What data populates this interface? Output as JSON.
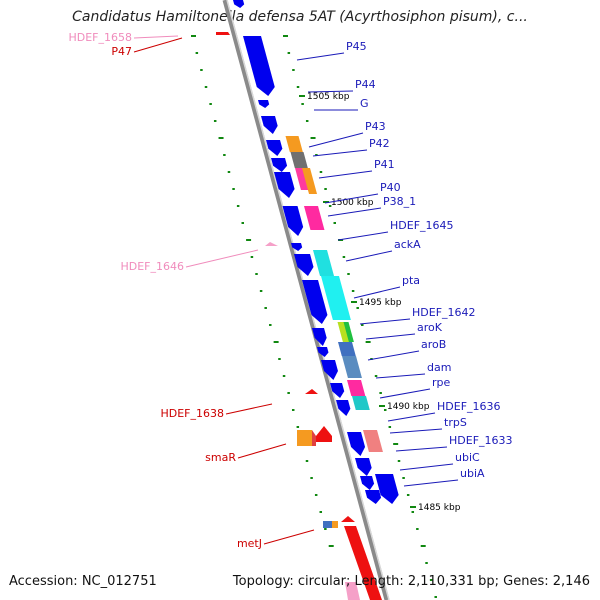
{
  "title": "Candidatus Hamiltonella defensa 5AT (Acyrthosiphon pisum), c...",
  "footer": {
    "accession": "Accession: NC_012751",
    "summary": "Topology: circular; Length: 2,110,331 bp; Genes: 2,146"
  },
  "colors": {
    "backbone": "#8a8a8a",
    "forward_gene": "#0000ee",
    "label_blue": "#1a1ab8",
    "label_red": "#cc0000",
    "label_pink": "#f08cbc",
    "tick_green": "#118811"
  },
  "scale_labels": [
    "1505 kbp",
    "1500 kbp",
    "1495 kbp",
    "1490 kbp",
    "1485 kbp"
  ],
  "right_labels": [
    "P45",
    "P44",
    "G",
    "P43",
    "P42",
    "P41",
    "P40",
    "P38_1",
    "HDEF_1645",
    "ackA",
    "pta",
    "HDEF_1642",
    "aroK",
    "aroB",
    "dam",
    "rpe",
    "HDEF_1636",
    "trpS",
    "HDEF_1633",
    "ubiC",
    "ubiA"
  ],
  "left_labels": [
    {
      "text": "HDEF_1658",
      "color": "pink"
    },
    {
      "text": "P47",
      "color": "red"
    },
    {
      "text": "HDEF_1646",
      "color": "pink"
    },
    {
      "text": "HDEF_1638",
      "color": "red"
    },
    {
      "text": "smaR",
      "color": "red"
    },
    {
      "text": "metJ",
      "color": "red"
    }
  ]
}
